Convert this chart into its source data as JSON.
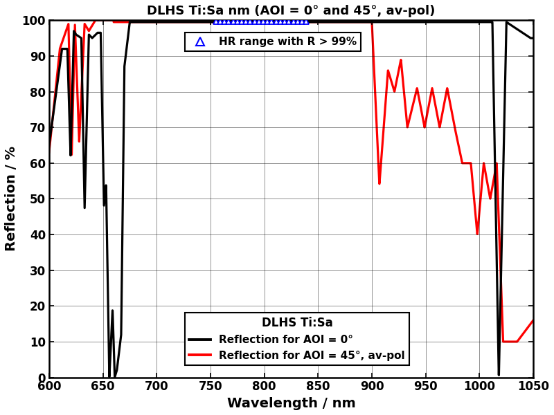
{
  "title": "DLHS Ti:Sa nm (AOI = 0° and 45°, av-pol)",
  "xlabel": "Wavelength / nm",
  "ylabel": "Reflection / %",
  "xlim": [
    600,
    1050
  ],
  "ylim": [
    0,
    100
  ],
  "xticks": [
    600,
    650,
    700,
    750,
    800,
    850,
    900,
    950,
    1000,
    1050
  ],
  "yticks": [
    0,
    10,
    20,
    30,
    40,
    50,
    60,
    70,
    80,
    90,
    100
  ],
  "hr_range_start": 755,
  "hr_range_end": 840,
  "legend_title": "DLHS Ti:Sa",
  "line_aoi0_label": "Reflection for AOI = 0°",
  "line_aoi45_label": "Reflection for AOI = 45°, av-pol",
  "hr_legend_label": "HR range with R > 99%",
  "background_color": "#ffffff",
  "line_aoi0_color": "#000000",
  "line_aoi45_color": "#ff0000",
  "hr_marker_color": "#0000ff"
}
